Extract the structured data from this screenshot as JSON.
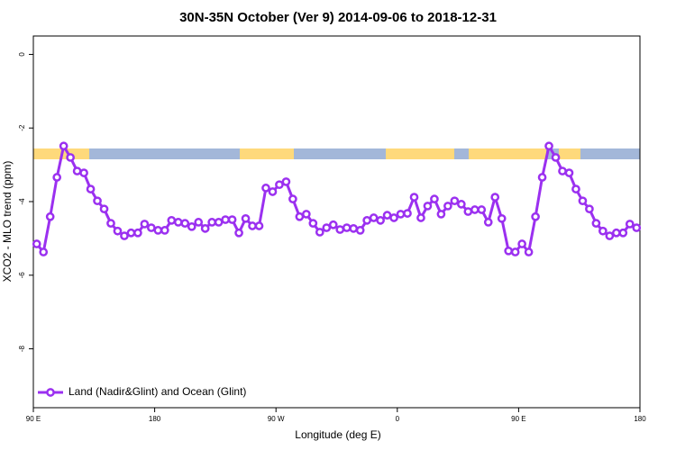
{
  "chart_data": {
    "type": "line",
    "title": "30N-35N October (Ver 9)   2014-09-06 to 2018-12-31",
    "xlabel": "Longitude (deg E)",
    "ylabel": "XCO2 - MLO trend (ppm)",
    "xlim": [
      90,
      540
    ],
    "xticks": [
      {
        "value": 90,
        "label": "90 E"
      },
      180,
      {
        "value": 270,
        "label": "90 W"
      },
      {
        "value": 360,
        "label": "0"
      },
      {
        "value": 450,
        "label": "90 E"
      },
      {
        "value": 540,
        "label": "180"
      }
    ],
    "ylim": [
      -9.6,
      0.5
    ],
    "yticks": [
      0,
      -2,
      -4,
      -6,
      -8
    ],
    "legend": "bottom-left",
    "x": [
      92.5,
      97.5,
      102.5,
      107.5,
      112.5,
      117.5,
      122.5,
      127.5,
      132.5,
      137.5,
      142.5,
      147.5,
      152.5,
      157.5,
      162.5,
      167.5,
      172.5,
      177.5,
      182.5,
      187.5,
      192.5,
      197.5,
      202.5,
      207.5,
      212.5,
      217.5,
      222.5,
      227.5,
      232.5,
      237.5,
      242.5,
      247.5,
      252.5,
      257.5,
      262.5,
      267.5,
      272.5,
      277.5,
      282.5,
      287.5,
      292.5,
      297.5,
      302.5,
      307.5,
      312.5,
      317.5,
      322.5,
      327.5,
      332.5,
      337.5,
      342.5,
      347.5,
      352.5,
      357.5,
      362.5,
      367.5,
      372.5,
      377.5,
      382.5,
      387.5,
      392.5,
      397.5,
      402.5,
      407.5,
      412.5,
      417.5,
      422.5,
      427.5,
      432.5,
      437.5,
      442.5,
      447.5,
      452.5,
      457.5,
      462.5,
      467.5,
      472.5,
      477.5,
      482.5,
      487.5,
      492.5,
      497.5,
      502.5,
      507.5,
      512.5,
      517.5,
      522.5,
      527.5,
      532.5,
      537.5
    ],
    "series": [
      {
        "name": "Land (Nadir&Glint) and Ocean (Glint)",
        "color": "#9b30f0",
        "values": [
          -5.15,
          -5.37,
          -4.41,
          -3.34,
          -2.49,
          -2.8,
          -3.17,
          -3.22,
          -3.66,
          -3.98,
          -4.2,
          -4.59,
          -4.8,
          -4.93,
          -4.85,
          -4.85,
          -4.61,
          -4.71,
          -4.78,
          -4.78,
          -4.51,
          -4.56,
          -4.59,
          -4.68,
          -4.56,
          -4.73,
          -4.56,
          -4.56,
          -4.49,
          -4.49,
          -4.85,
          -4.46,
          -4.66,
          -4.66,
          -3.63,
          -3.73,
          -3.54,
          -3.46,
          -3.93,
          -4.41,
          -4.34,
          -4.59,
          -4.83,
          -4.71,
          -4.63,
          -4.76,
          -4.71,
          -4.73,
          -4.78,
          -4.51,
          -4.44,
          -4.51,
          -4.37,
          -4.44,
          -4.34,
          -4.32,
          -3.88,
          -4.44,
          -4.12,
          -3.93,
          -4.34,
          -4.12,
          -3.98,
          -4.07,
          -4.27,
          -4.22,
          -4.22,
          -4.56,
          -3.88,
          -4.46,
          -5.34,
          -5.37,
          -5.15,
          -5.37,
          -4.41,
          -3.34,
          -2.49,
          -2.8,
          -3.17,
          -3.22,
          -3.66,
          -3.98,
          -4.2,
          -4.59,
          -4.8,
          -4.93,
          -4.85,
          -4.85,
          -4.61,
          -4.71
        ]
      }
    ]
  }
}
